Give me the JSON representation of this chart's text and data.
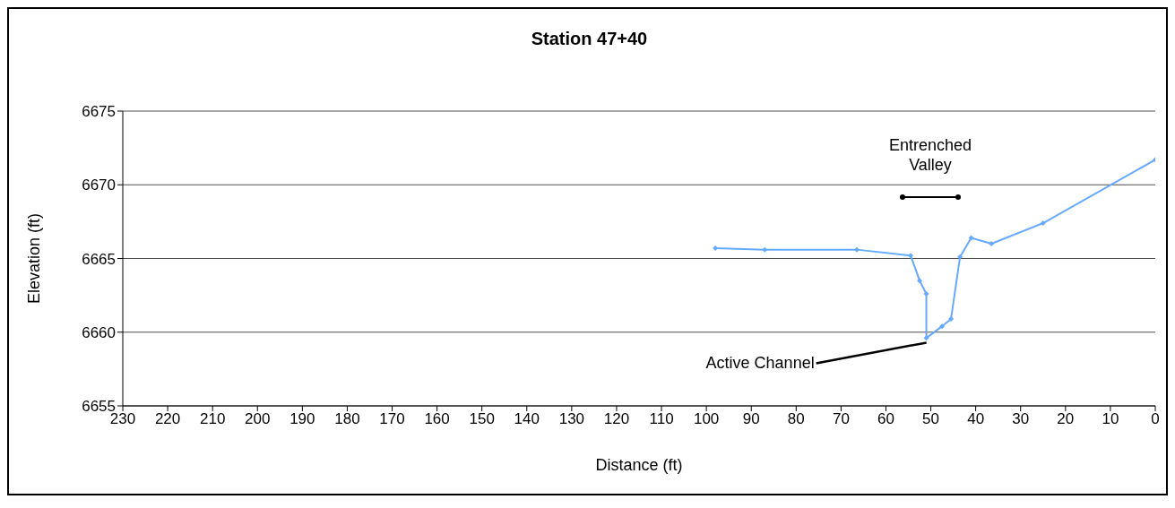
{
  "chart_data": {
    "type": "line",
    "title": "Station 47+40",
    "xlabel": "Distance (ft)",
    "ylabel": "Elevation (ft)",
    "x": [
      98,
      87,
      66.5,
      54.5,
      52.5,
      51,
      51,
      47.5,
      45.5,
      43.5,
      41,
      36.5,
      25,
      0
    ],
    "series": [
      {
        "color": "#66aaff",
        "values": [
          6665.7,
          6665.6,
          6665.6,
          6665.2,
          6663.5,
          6662.6,
          6659.6,
          6660.4,
          6660.9,
          6665.1,
          6666.4,
          6666.0,
          6667.4,
          6671.7
        ]
      }
    ],
    "xlim": [
      230,
      0
    ],
    "xticks": [
      230,
      220,
      210,
      200,
      190,
      180,
      170,
      160,
      150,
      140,
      130,
      120,
      110,
      100,
      90,
      80,
      70,
      60,
      50,
      40,
      30,
      20,
      10,
      0
    ],
    "ylim": [
      6655,
      6675
    ],
    "yticks": [
      6655,
      6660,
      6665,
      6670,
      6675
    ],
    "grid": "y",
    "legend": false,
    "marker": "diamond",
    "line_style": "solid",
    "annotations": [
      "Entrenched Valley",
      {
        "text": "Active Channel",
        "x": 51,
        "y": 6659.6
      }
    ]
  }
}
